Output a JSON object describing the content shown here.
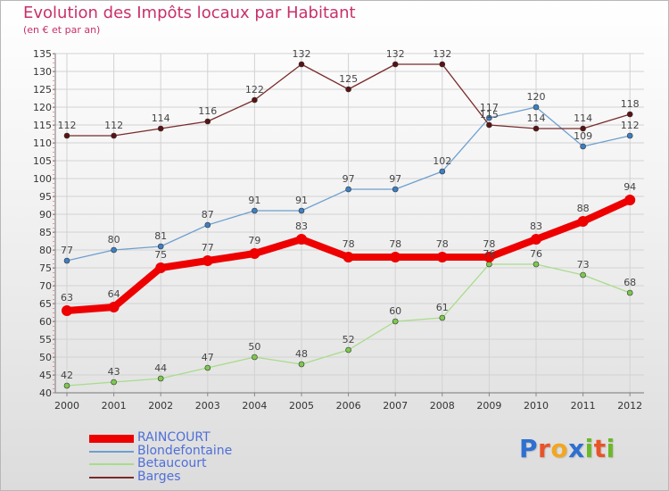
{
  "header": {
    "title": "Evolution des Impôts locaux par Habitant",
    "subtitle": "(en € et par an)"
  },
  "logo": {
    "text": "Proxiti",
    "letters": [
      "P",
      "r",
      "o",
      "x",
      "i",
      "t",
      "i"
    ],
    "letter_colors": [
      "#2f6fd0",
      "#e8542a",
      "#f2a623",
      "#2f6fd0",
      "#6cb82a",
      "#e8542a",
      "#6cb82a"
    ]
  },
  "chart_data": {
    "type": "line",
    "title": "Evolution des Impôts locaux par Habitant",
    "subtitle": "(en € et par an)",
    "xlabel": "",
    "ylabel": "",
    "x": [
      "2000",
      "2001",
      "2002",
      "2003",
      "2004",
      "2005",
      "2006",
      "2007",
      "2008",
      "2009",
      "2010",
      "2011",
      "2012"
    ],
    "ylim": [
      40,
      135
    ],
    "yticks": [
      40,
      45,
      50,
      55,
      60,
      65,
      70,
      75,
      80,
      85,
      90,
      95,
      100,
      105,
      110,
      115,
      120,
      125,
      130,
      135
    ],
    "grid": true,
    "legend_position": "bottom-left",
    "series": [
      {
        "name": "RAINCOURT",
        "values": [
          63,
          64,
          75,
          77,
          79,
          83,
          78,
          78,
          78,
          78,
          83,
          88,
          94
        ],
        "color": "#ee0000",
        "dot": "#ee0000",
        "emphasis": true
      },
      {
        "name": "Blondefontaine",
        "values": [
          77,
          80,
          81,
          87,
          91,
          91,
          97,
          97,
          102,
          117,
          120,
          109,
          112
        ],
        "color": "#6e9fcf",
        "dot": "#3d7fc4",
        "emphasis": false
      },
      {
        "name": "Betaucourt",
        "values": [
          42,
          43,
          44,
          47,
          50,
          48,
          52,
          60,
          61,
          76,
          76,
          73,
          68
        ],
        "color": "#a8dc8a",
        "dot": "#7dc84e",
        "emphasis": false
      },
      {
        "name": "Barges",
        "values": [
          112,
          112,
          114,
          116,
          122,
          132,
          125,
          132,
          132,
          115,
          114,
          114,
          118
        ],
        "color": "#7a2a2a",
        "dot": "#5a1212",
        "emphasis": false
      }
    ]
  }
}
